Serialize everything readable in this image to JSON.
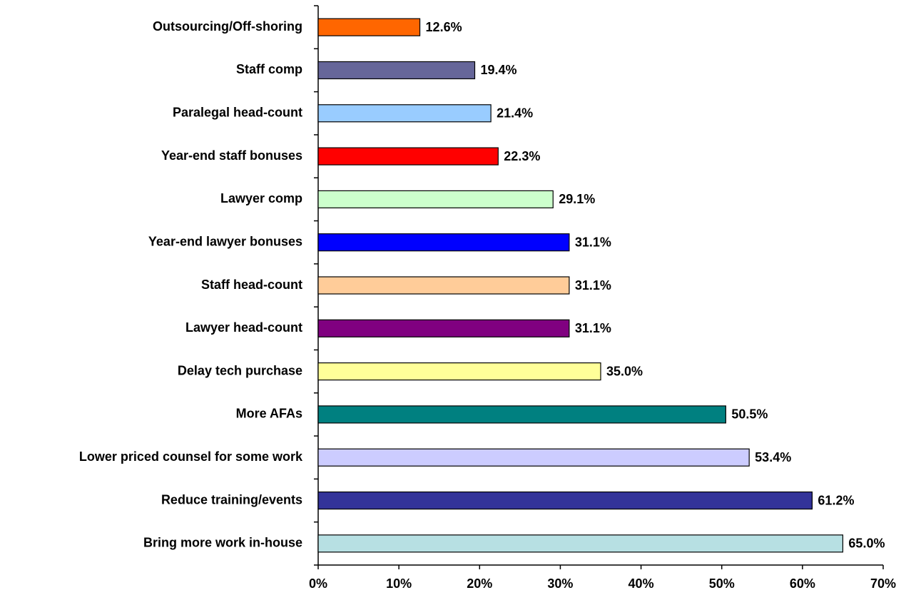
{
  "chart_data": {
    "type": "bar",
    "orientation": "horizontal",
    "categories": [
      "Outsourcing/Off-shoring",
      "Staff comp",
      "Paralegal head-count",
      "Year-end staff bonuses",
      "Lawyer comp",
      "Year-end lawyer bonuses",
      "Staff head-count",
      "Lawyer head-count",
      "Delay tech purchase",
      "More AFAs",
      "Lower priced counsel for some work",
      "Reduce training/events",
      "Bring more work in-house"
    ],
    "values": [
      12.6,
      19.4,
      21.4,
      22.3,
      29.1,
      31.1,
      31.1,
      31.1,
      35.0,
      50.5,
      53.4,
      61.2,
      65.0
    ],
    "value_labels": [
      "12.6%",
      "19.4%",
      "21.4%",
      "22.3%",
      "29.1%",
      "31.1%",
      "31.1%",
      "31.1%",
      "35.0%",
      "50.5%",
      "53.4%",
      "61.2%",
      "65.0%"
    ],
    "colors": [
      "#ff6600",
      "#666699",
      "#99ccff",
      "#ff0000",
      "#ccffcc",
      "#0000ff",
      "#ffcc99",
      "#800080",
      "#ffff99",
      "#008080",
      "#ccccff",
      "#333399",
      "#b7e0e3"
    ],
    "xlim": [
      0,
      70
    ],
    "xticks": [
      {
        "value": 0,
        "label": "0%"
      },
      {
        "value": 10,
        "label": "10%"
      },
      {
        "value": 20,
        "label": "20%"
      },
      {
        "value": 30,
        "label": "30%"
      },
      {
        "value": 40,
        "label": "40%"
      },
      {
        "value": 50,
        "label": "50%"
      },
      {
        "value": 60,
        "label": "60%"
      },
      {
        "value": 70,
        "label": "70%"
      }
    ],
    "grid": false
  }
}
